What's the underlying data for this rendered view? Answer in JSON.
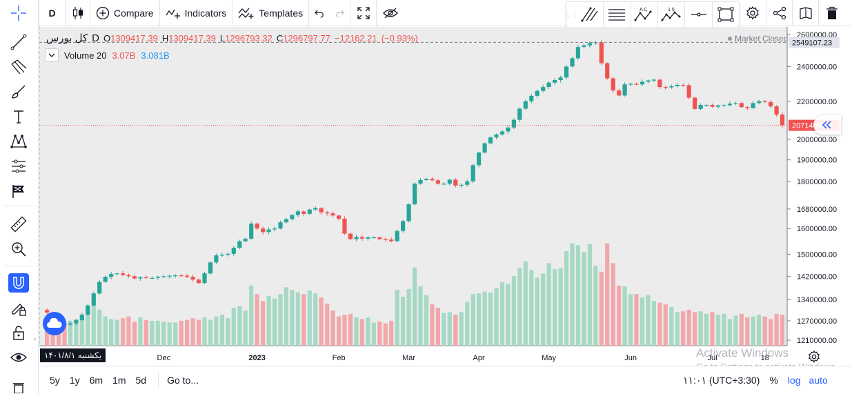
{
  "toolbar": {
    "interval": "D",
    "compare_label": "Compare",
    "indicators_label": "Indicators",
    "templates_label": "Templates"
  },
  "legend": {
    "symbol": "کل بورس",
    "interval": "D",
    "open_label": "O",
    "open": "1309417.39",
    "high_label": "H",
    "high": "1309417.39",
    "low_label": "L",
    "low": "1296793.32",
    "close_label": "C",
    "close": "1296797.77",
    "change": "−12162.21",
    "change_pct": "(−0.93%)",
    "volume_title": "Volume 20",
    "volume_value": "3.07B",
    "volume_ma": "3.081B"
  },
  "market_status": "Market Closed",
  "drawing_toolbar": {
    "label_ac": "A C",
    "label_15": "1 5"
  },
  "crosshair_date": "۱۴۰۱/۸/۱ یکشنبه",
  "bottom_bar": {
    "ranges": [
      "5y",
      "1y",
      "6m",
      "1m",
      "5d"
    ],
    "goto_label": "Go to...",
    "clock": "۱۱:۰۱ (UTC+3:30)",
    "percent_label": "%",
    "log_label": "log",
    "auto_label": "auto"
  },
  "watermark": {
    "line1": "Activate Windows",
    "line2": "Go to Settings to activate Windows."
  },
  "colors": {
    "up": "#26a69a",
    "down": "#ef5350",
    "volume_up": "#a6d9c4",
    "volume_down": "#f2a8aa",
    "accent": "#2962ff",
    "axis_text": "#131722"
  },
  "chart_data": {
    "type": "candlestick",
    "y_scale": "log",
    "y_ticks": [
      1210000,
      1270000,
      1340000,
      1420000,
      1500000,
      1600000,
      1680000,
      1800000,
      1900000,
      2000000,
      2200000,
      2400000,
      2600000
    ],
    "y_tick_labels": [
      "1210000.00",
      "1270000.00",
      "1340000.00",
      "1420000.00",
      "1500000.00",
      "1600000.00",
      "1680000.00",
      "1800000.00",
      "1900000.00",
      "2000000.00",
      "2200000.00",
      "2400000.00",
      "2600000.00"
    ],
    "price_labels": {
      "high_marker": "2549107.23",
      "last_price": "2071406.28"
    },
    "high_marker_value": 2549107.23,
    "last_price_value": 2071406.28,
    "x_labels": [
      {
        "label": "Dec",
        "bar": 20
      },
      {
        "label": "2023",
        "bar": 36
      },
      {
        "label": "Feb",
        "bar": 50
      },
      {
        "label": "Mar",
        "bar": 62
      },
      {
        "label": "Apr",
        "bar": 74
      },
      {
        "label": "May",
        "bar": 86
      },
      {
        "label": "Jun",
        "bar": 100
      },
      {
        "label": "Jul",
        "bar": 114
      },
      {
        "label": "18",
        "bar": 123
      }
    ],
    "bar_step_px": 8.46,
    "first_bar_index": -0.6,
    "closes": [
      1297000,
      1280000,
      1262000,
      1258000,
      1262000,
      1272000,
      1290000,
      1320000,
      1360000,
      1400000,
      1418000,
      1428000,
      1430000,
      1424000,
      1420000,
      1412000,
      1416000,
      1414000,
      1414000,
      1418000,
      1420000,
      1422000,
      1423000,
      1422000,
      1418000,
      1408000,
      1396000,
      1430000,
      1470000,
      1496000,
      1498000,
      1502000,
      1525000,
      1550000,
      1560000,
      1620000,
      1600000,
      1586000,
      1596000,
      1600000,
      1625000,
      1638000,
      1655000,
      1670000,
      1660000,
      1678000,
      1684000,
      1666000,
      1662000,
      1653000,
      1640000,
      1580000,
      1558000,
      1566000,
      1560000,
      1565000,
      1565000,
      1558000,
      1556000,
      1550000,
      1590000,
      1630000,
      1700000,
      1790000,
      1806000,
      1812000,
      1805000,
      1790000,
      1790000,
      1808000,
      1782000,
      1785000,
      1800000,
      1875000,
      1935000,
      1980000,
      2010000,
      2025000,
      2040000,
      2060000,
      2100000,
      2160000,
      2200000,
      2230000,
      2258000,
      2280000,
      2305000,
      2320000,
      2335000,
      2400000,
      2450000,
      2520000,
      2530000,
      2545000,
      2549000,
      2420000,
      2330000,
      2260000,
      2232000,
      2295000,
      2298000,
      2295000,
      2310000,
      2318000,
      2322000,
      2280000,
      2278000,
      2284000,
      2292000,
      2290000,
      2220000,
      2158000,
      2180000,
      2180000,
      2170000,
      2177000,
      2178000,
      2186000,
      2190000,
      2168000,
      2163000,
      2190000,
      2200000,
      2196000,
      2172000,
      2128000,
      2071406
    ],
    "volumes_b": [
      2.4,
      2.4,
      2.3,
      2.6,
      2.9,
      3.1,
      3.5,
      4.3,
      4.8,
      4.2,
      3.4,
      3.1,
      3.0,
      3.2,
      3.4,
      2.8,
      3.3,
      3.0,
      2.9,
      2.9,
      2.8,
      2.7,
      2.7,
      2.9,
      3.0,
      3.2,
      3.0,
      3.3,
      3.0,
      3.4,
      3.6,
      3.2,
      4.4,
      4.6,
      4.1,
      7.0,
      6.0,
      5.2,
      5.8,
      5.5,
      6.0,
      6.8,
      6.5,
      6.2,
      6.0,
      6.4,
      6.1,
      5.6,
      4.9,
      4.1,
      3.4,
      3.6,
      3.7,
      3.3,
      3.1,
      3.3,
      2.7,
      2.8,
      2.6,
      2.9,
      6.5,
      5.7,
      6.6,
      9.1,
      6.9,
      5.9,
      4.8,
      4.4,
      3.8,
      3.9,
      3.6,
      3.9,
      5.1,
      6.0,
      6.1,
      6.3,
      6.2,
      6.7,
      7.4,
      7.2,
      8.1,
      9.0,
      9.8,
      8.8,
      7.9,
      8.4,
      9.6,
      8.9,
      9.0,
      11.0,
      11.9,
      11.7,
      10.9,
      11.8,
      9.3,
      8.6,
      11.9,
      9.6,
      7.0,
      6.9,
      6.0,
      6.0,
      5.6,
      5.9,
      5.2,
      5.0,
      4.8,
      4.5,
      3.9,
      4.0,
      4.2,
      3.9,
      4.0,
      3.7,
      3.9,
      3.6,
      3.7,
      3.1,
      3.5,
      3.7,
      3.3,
      3.4,
      3.6,
      3.4,
      3.1,
      3.7,
      3.6
    ],
    "volume_scale_max_b": 13.0
  }
}
